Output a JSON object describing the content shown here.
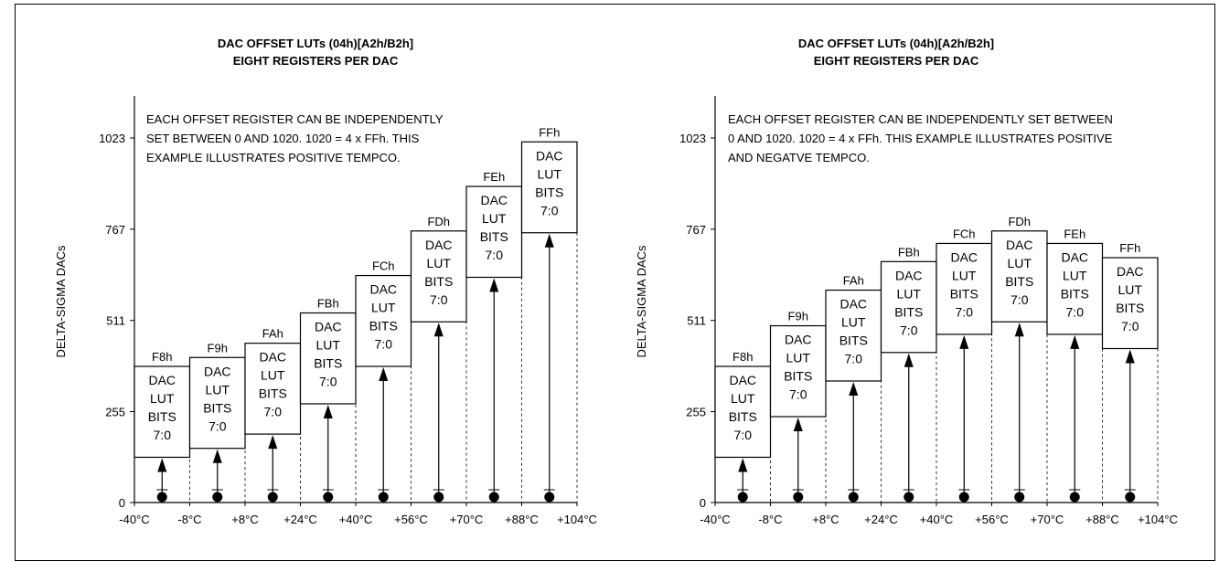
{
  "panels": [
    {
      "title_line1": "DAC OFFSET LUTs (04h)[A2h/B2h]",
      "title_line2": "EIGHT REGISTERS PER DAC",
      "note_lines": [
        "EACH OFFSET REGISTER CAN BE INDEPENDENTLY",
        "SET BETWEEN 0 AND 1020. 1020 = 4 x FFh. THIS",
        "EXAMPLE ILLUSTRATES POSITIVE TEMPCO."
      ],
      "y_axis_label": "DELTA-SIGMA DACs",
      "y_ticks": [
        "1023",
        "767",
        "511",
        "255",
        "0"
      ],
      "x_ticks": [
        "-40°C",
        "-8°C",
        "+8°C",
        "+24°C",
        "+40°C",
        "+56°C",
        "+70°C",
        "+88°C",
        "+104°C"
      ],
      "registers": [
        "F8h",
        "F9h",
        "FAh",
        "FBh",
        "FCh",
        "FDh",
        "FEh",
        "FFh"
      ],
      "box_lines": [
        "DAC",
        "LUT",
        "BITS",
        "7:0"
      ],
      "chart_data": {
        "type": "bar",
        "ylim": [
          0,
          1023
        ],
        "offset_bottoms": [
          127,
          152,
          192,
          277,
          382,
          507,
          632,
          757
        ],
        "box_height": 255
      }
    },
    {
      "title_line1": "DAC OFFSET LUTs (04h)[A2h/B2h]",
      "title_line2": "EIGHT REGISTERS PER DAC",
      "note_lines": [
        "EACH OFFSET REGISTER CAN BE INDEPENDENTLY SET BETWEEN",
        "0 AND 1020. 1020 = 4 x FFh. THIS EXAMPLE ILLUSTRATES POSITIVE",
        "AND NEGATVE TEMPCO."
      ],
      "y_axis_label": "DELTA-SIGMA DACs",
      "y_ticks": [
        "1023",
        "767",
        "511",
        "255",
        "0"
      ],
      "x_ticks": [
        "-40°C",
        "-8°C",
        "+8°C",
        "+24°C",
        "+40°C",
        "+56°C",
        "+70°C",
        "+88°C",
        "+104°C"
      ],
      "registers": [
        "F8h",
        "F9h",
        "FAh",
        "FBh",
        "FCh",
        "FDh",
        "FEh",
        "FFh"
      ],
      "box_lines": [
        "DAC",
        "LUT",
        "BITS",
        "7:0"
      ],
      "chart_data": {
        "type": "bar",
        "ylim": [
          0,
          1023
        ],
        "offset_bottoms": [
          127,
          241,
          341,
          421,
          472,
          507,
          472,
          432
        ],
        "box_height": 255
      }
    }
  ]
}
